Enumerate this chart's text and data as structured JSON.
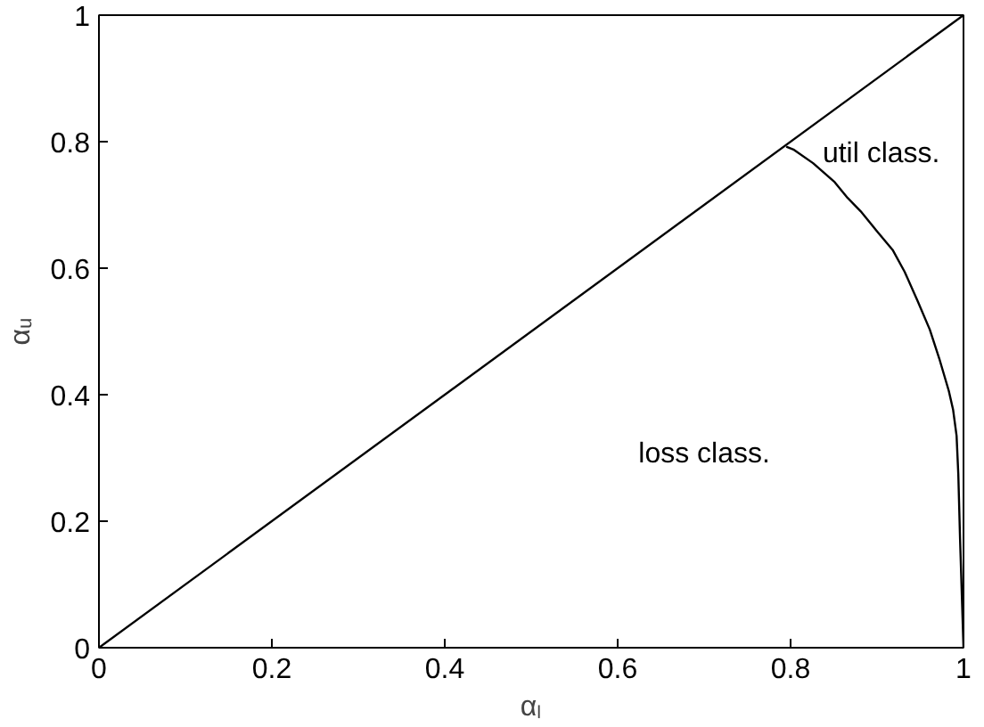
{
  "chart_data": {
    "type": "line",
    "xlabel": "αₗ",
    "ylabel": "αᵤ",
    "series": [
      {
        "color": "#000000",
        "x": [
          0,
          1
        ],
        "values": [
          0,
          1
        ]
      },
      {
        "color": "#000000",
        "x": [
          0.795,
          0.804,
          0.826,
          0.851,
          0.866,
          0.881,
          0.899,
          0.918,
          0.932,
          0.947,
          0.961,
          0.972,
          0.983,
          0.988,
          0.992,
          0.994,
          0.996,
          1.0
        ],
        "values": [
          0.792,
          0.787,
          0.766,
          0.736,
          0.711,
          0.69,
          0.66,
          0.629,
          0.594,
          0.548,
          0.503,
          0.457,
          0.406,
          0.376,
          0.335,
          0.274,
          0.173,
          0.0
        ]
      }
    ],
    "annotations": [
      "util class.",
      "loss class."
    ],
    "xlim": [
      0,
      1
    ],
    "ylim": [
      0,
      1
    ],
    "xticks": [
      0,
      0.2,
      0.4,
      0.6,
      0.8,
      1
    ],
    "yticks": [
      0,
      0.2,
      0.4,
      0.6,
      0.8,
      1
    ],
    "grid": false,
    "marker": "none",
    "line_style": "solid"
  }
}
